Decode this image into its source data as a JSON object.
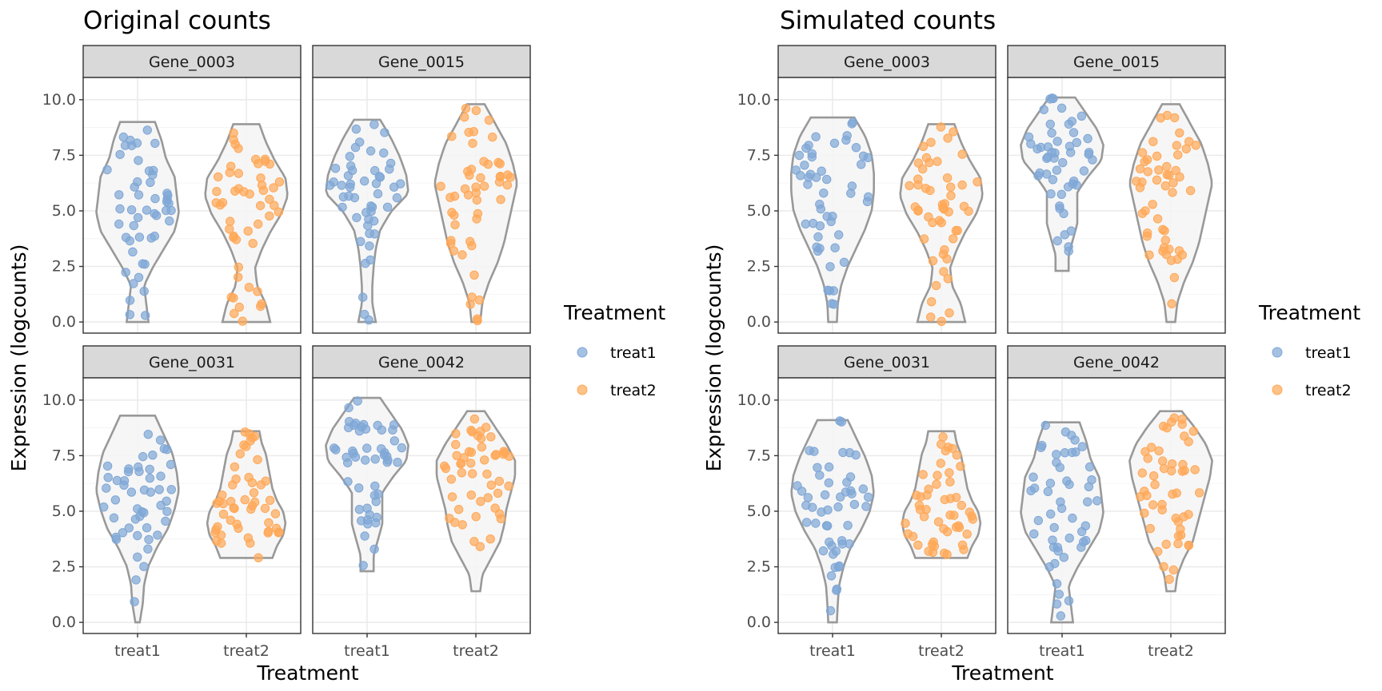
{
  "colors": {
    "treat1": "#7FA7D6",
    "treat2": "#FFA857"
  },
  "chart_data": [
    {
      "type": "violin",
      "title": "Original counts",
      "xlabel": "Treatment",
      "ylabel": "Expression (logcounts)",
      "ylim": [
        -0.5,
        11
      ],
      "yticks": [
        "0.0",
        "2.5",
        "5.0",
        "7.5",
        "10.0"
      ],
      "categories": [
        "treat1",
        "treat2"
      ],
      "legend": {
        "title": "Treatment",
        "items": [
          "treat1",
          "treat2"
        ],
        "placement": "right"
      },
      "facets": [
        {
          "label": "Gene_0003",
          "groups": [
            {
              "name": "treat1",
              "min": 0,
              "max": 9.0,
              "center": 5.5,
              "width": [
                0.25,
                0.2,
                0.15,
                0.35,
                0.6,
                0.85,
                0.95,
                0.9,
                0.85,
                0.65,
                0.55,
                0.4
              ]
            },
            {
              "name": "treat2",
              "min": 0,
              "max": 8.9,
              "center": 5.0,
              "width": [
                0.55,
                0.45,
                0.25,
                0.2,
                0.35,
                0.55,
                0.8,
                0.95,
                0.9,
                0.65,
                0.45,
                0.3
              ]
            }
          ]
        },
        {
          "label": "Gene_0015",
          "groups": [
            {
              "name": "treat1",
              "min": 0,
              "max": 9.1,
              "center": 6.4,
              "width": [
                0.2,
                0.12,
                0.12,
                0.15,
                0.2,
                0.3,
                0.55,
                0.95,
                0.9,
                0.75,
                0.55,
                0.3
              ]
            },
            {
              "name": "treat2",
              "min": 0,
              "max": 9.8,
              "center": 5.0,
              "width": [
                0.1,
                0.15,
                0.3,
                0.5,
                0.65,
                0.75,
                0.85,
                0.95,
                0.85,
                0.7,
                0.45,
                0.2
              ]
            }
          ]
        },
        {
          "label": "Gene_0031",
          "groups": [
            {
              "name": "treat1",
              "min": 0,
              "max": 9.3,
              "center": 6.0,
              "width": [
                0.05,
                0.12,
                0.15,
                0.25,
                0.45,
                0.7,
                0.85,
                0.95,
                0.9,
                0.8,
                0.6,
                0.4
              ]
            },
            {
              "name": "treat2",
              "min": 2.9,
              "max": 8.6,
              "center": 6.0,
              "width": [
                0.6,
                0.7,
                0.85,
                0.9,
                0.85,
                0.7,
                0.6,
                0.55,
                0.5,
                0.45,
                0.35,
                0.3
              ]
            }
          ]
        },
        {
          "label": "Gene_0042",
          "groups": [
            {
              "name": "treat1",
              "min": 2.3,
              "max": 10.1,
              "center": 7.6,
              "width": [
                0.15,
                0.15,
                0.25,
                0.35,
                0.35,
                0.35,
                0.6,
                0.9,
                0.95,
                0.8,
                0.55,
                0.3
              ]
            },
            {
              "name": "treat2",
              "min": 1.4,
              "max": 9.5,
              "center": 6.5,
              "width": [
                0.1,
                0.15,
                0.35,
                0.55,
                0.65,
                0.7,
                0.8,
                0.9,
                0.9,
                0.7,
                0.45,
                0.2
              ]
            }
          ]
        }
      ]
    },
    {
      "type": "violin",
      "title": "Simulated counts",
      "xlabel": "Treatment",
      "ylabel": "Expression (logcounts)",
      "ylim": [
        -0.5,
        11
      ],
      "yticks": [
        "0.0",
        "2.5",
        "5.0",
        "7.5",
        "10.0"
      ],
      "categories": [
        "treat1",
        "treat2"
      ],
      "legend": {
        "title": "Treatment",
        "items": [
          "treat1",
          "treat2"
        ],
        "placement": "right"
      },
      "facets": [
        {
          "label": "Gene_0003",
          "groups": [
            {
              "name": "treat1",
              "min": 0,
              "max": 9.2,
              "center": 6.3,
              "width": [
                0.1,
                0.12,
                0.2,
                0.35,
                0.55,
                0.75,
                0.9,
                0.95,
                0.95,
                0.9,
                0.75,
                0.5
              ]
            },
            {
              "name": "treat2",
              "min": 0,
              "max": 8.9,
              "center": 5.0,
              "width": [
                0.55,
                0.45,
                0.25,
                0.2,
                0.35,
                0.55,
                0.8,
                0.95,
                0.9,
                0.65,
                0.45,
                0.3
              ]
            }
          ]
        },
        {
          "label": "Gene_0015",
          "groups": [
            {
              "name": "treat1",
              "min": 2.3,
              "max": 10.1,
              "center": 7.6,
              "width": [
                0.15,
                0.15,
                0.25,
                0.35,
                0.35,
                0.35,
                0.6,
                0.9,
                0.95,
                0.8,
                0.55,
                0.3
              ]
            },
            {
              "name": "treat2",
              "min": 0,
              "max": 9.8,
              "center": 5.0,
              "width": [
                0.1,
                0.15,
                0.3,
                0.5,
                0.65,
                0.75,
                0.85,
                0.95,
                0.85,
                0.7,
                0.45,
                0.2
              ]
            }
          ]
        },
        {
          "label": "Gene_0031",
          "groups": [
            {
              "name": "treat1",
              "min": 0,
              "max": 9.1,
              "center": 6.4,
              "width": [
                0.1,
                0.12,
                0.15,
                0.25,
                0.4,
                0.65,
                0.85,
                0.95,
                0.9,
                0.75,
                0.55,
                0.35
              ]
            },
            {
              "name": "treat2",
              "min": 2.9,
              "max": 8.6,
              "center": 6.0,
              "width": [
                0.6,
                0.7,
                0.85,
                0.9,
                0.85,
                0.7,
                0.6,
                0.55,
                0.5,
                0.45,
                0.35,
                0.3
              ]
            }
          ]
        },
        {
          "label": "Gene_0042",
          "groups": [
            {
              "name": "treat1",
              "min": 0,
              "max": 9.0,
              "center": 5.0,
              "width": [
                0.25,
                0.2,
                0.15,
                0.35,
                0.6,
                0.85,
                0.95,
                0.9,
                0.85,
                0.65,
                0.55,
                0.4
              ]
            },
            {
              "name": "treat2",
              "min": 1.4,
              "max": 9.5,
              "center": 7.2,
              "width": [
                0.1,
                0.15,
                0.3,
                0.5,
                0.6,
                0.7,
                0.8,
                0.9,
                0.95,
                0.8,
                0.55,
                0.25
              ]
            }
          ]
        }
      ]
    }
  ]
}
